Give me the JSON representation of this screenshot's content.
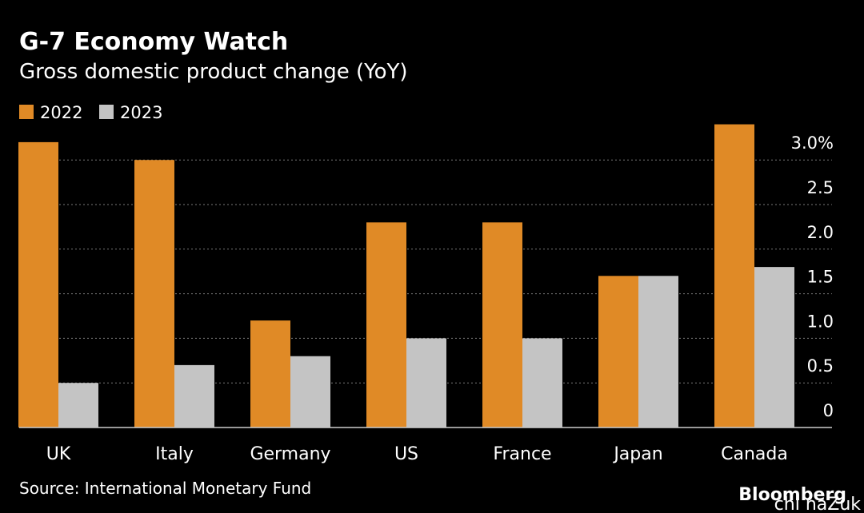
{
  "chart_data": {
    "type": "bar",
    "title": "G-7 Economy Watch",
    "subtitle": "Gross domestic product change (YoY)",
    "source": "Source: International Monetary Fund",
    "brand": "Bloomberg",
    "watermark": "chi naZuk",
    "categories": [
      "UK",
      "Italy",
      "Germany",
      "US",
      "France",
      "Japan",
      "Canada"
    ],
    "series": [
      {
        "name": "2022",
        "color": "#e08a26",
        "values": [
          3.2,
          3.0,
          1.2,
          2.3,
          2.3,
          1.7,
          3.4
        ]
      },
      {
        "name": "2023",
        "color": "#c4c4c4",
        "values": [
          0.5,
          0.7,
          0.8,
          1.0,
          1.0,
          1.7,
          1.8
        ]
      }
    ],
    "ylim": [
      0,
      3.45
    ],
    "yticks": [
      0,
      0.5,
      {
        "value": 1.0,
        "label": "1.0"
      },
      1.5,
      {
        "value": 2.0,
        "label": "2.0"
      },
      2.5,
      {
        "value": 3.0,
        "label": "3.0%"
      }
    ],
    "grid": true
  }
}
